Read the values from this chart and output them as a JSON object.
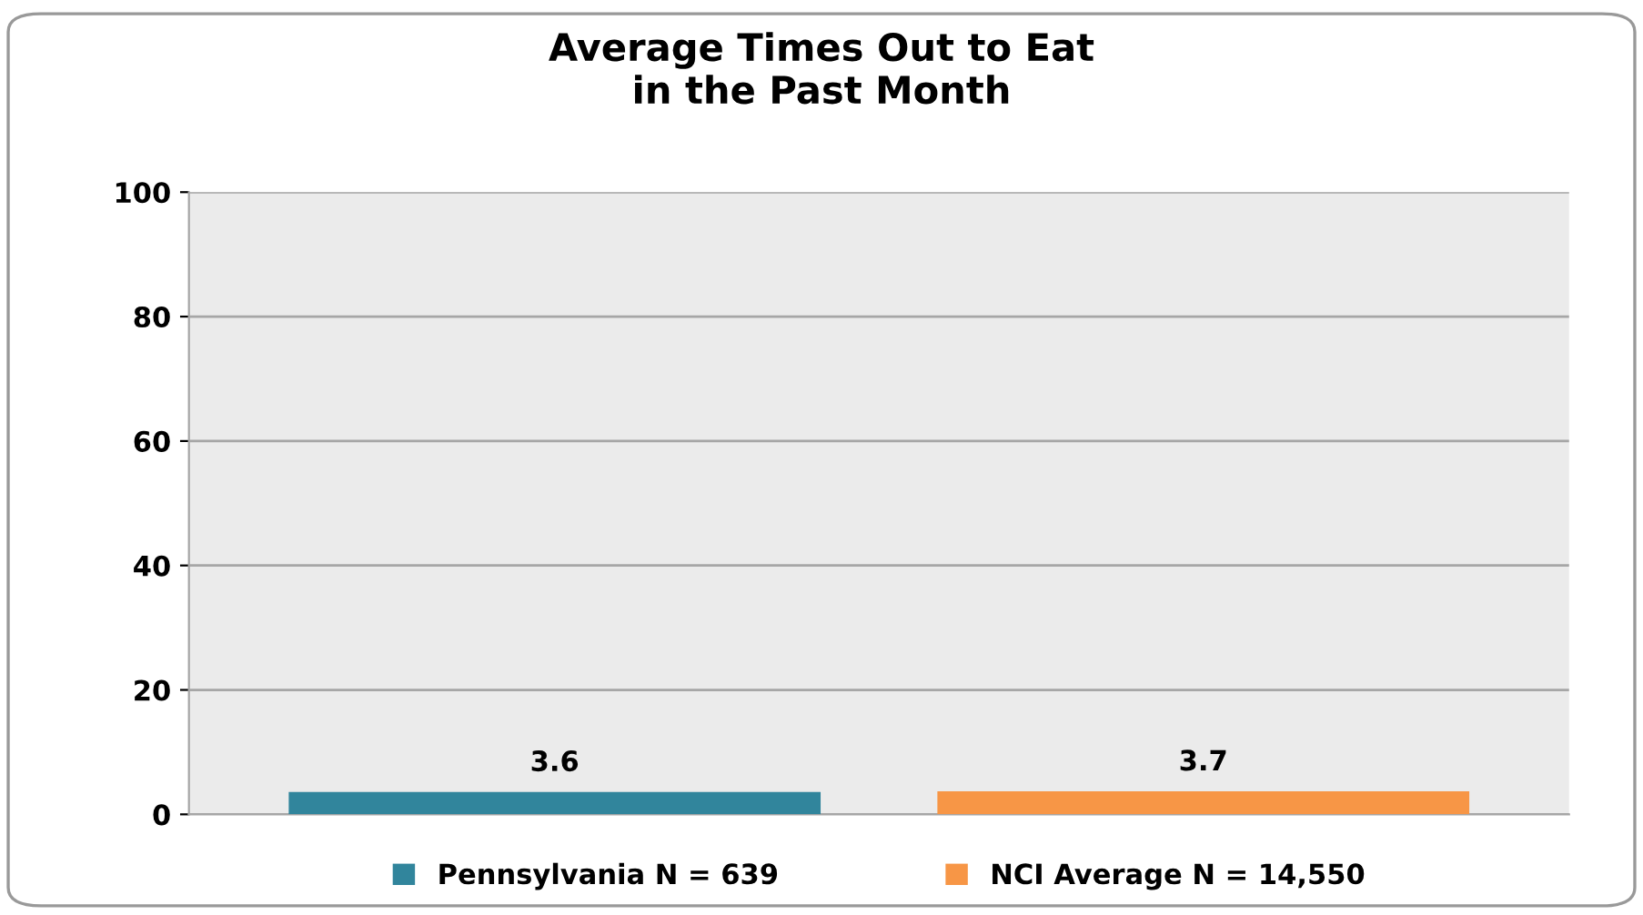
{
  "chart_data": {
    "type": "bar",
    "title": "Average Times Out to Eat\nin the Past Month",
    "categories": [
      null
    ],
    "series": [
      {
        "name": "Pennsylvania N = 639",
        "color": "#31859c",
        "values": [
          3.6
        ]
      },
      {
        "name": "NCI Average N = 14,550",
        "color": "#f79646",
        "values": [
          3.7
        ]
      }
    ],
    "ylim": [
      0,
      100
    ],
    "yticks": [
      0,
      20,
      40,
      60,
      80,
      100
    ],
    "grid": "y",
    "legend": "bottom",
    "data_labels": true
  }
}
